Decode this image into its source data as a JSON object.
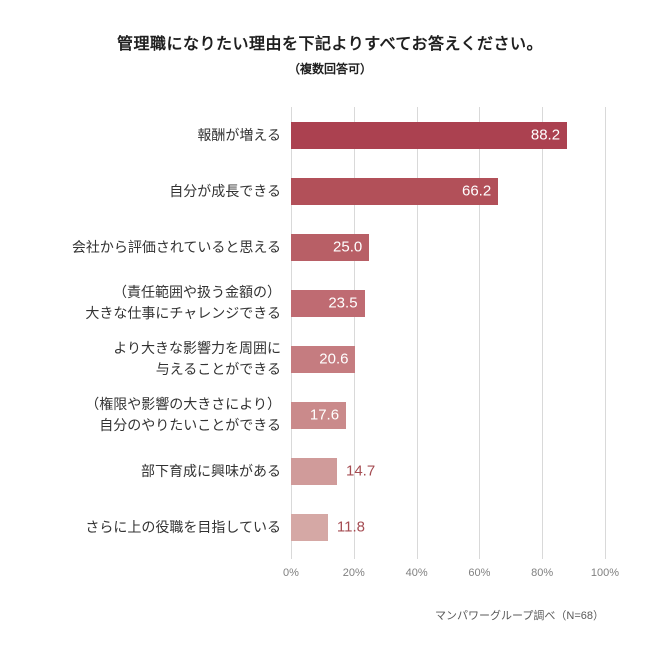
{
  "title": "管理職になりたい理由を下記よりすべてお答えください。",
  "subtitle": "（複数回答可）",
  "source_note": "マンパワーグループ調べ（N=68）",
  "chart_data": {
    "type": "bar",
    "orientation": "horizontal",
    "title": "管理職になりたい理由を下記よりすべてお答えください。（複数回答可）",
    "categories": [
      "報酬が増える",
      "自分が成長できる",
      "会社から評価されていると思える",
      "（責任範囲や扱う金額の）\n大きな仕事にチャレンジできる",
      "より大きな影響力を周囲に\n与えることができる",
      "（権限や影響の大きさにより）\n自分のやりたいことができる",
      "部下育成に興味がある",
      "さらに上の役職を目指している"
    ],
    "values": [
      88.2,
      66.2,
      25.0,
      23.5,
      20.6,
      17.6,
      14.7,
      11.8
    ],
    "value_labels": [
      "88.2",
      "66.2",
      "25.0",
      "23.5",
      "20.6",
      "17.6",
      "14.7",
      "11.8"
    ],
    "value_label_inside": [
      true,
      true,
      true,
      true,
      true,
      true,
      false,
      false
    ],
    "bar_colors": [
      "#ab4150",
      "#b25059",
      "#b85f66",
      "#bf6b72",
      "#c57c80",
      "#ca8a8b",
      "#d09b9a",
      "#d5a8a5"
    ],
    "value_label_color_inside": "#ffffff",
    "value_label_color_outside": "#a54c52",
    "xlim": [
      0,
      100
    ],
    "x_ticks": [
      "0%",
      "20%",
      "40%",
      "60%",
      "80%",
      "100%"
    ],
    "grid": "vertical",
    "gridline_color": "#d9d9d9",
    "legend": "none",
    "unit": "%"
  }
}
